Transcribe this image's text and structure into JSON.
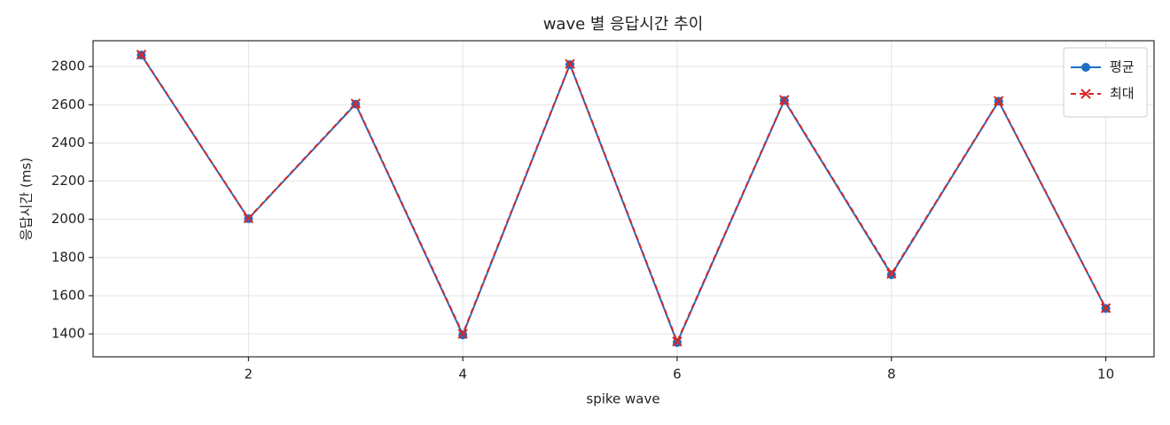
{
  "chart_data": {
    "type": "line",
    "title": "wave 별 응답시간 추이",
    "xlabel": "spike wave",
    "ylabel": "응답시간 (ms)",
    "x": [
      1,
      2,
      3,
      4,
      5,
      6,
      7,
      8,
      9,
      10
    ],
    "series": [
      {
        "name": "평균",
        "color": "#1f6fc5",
        "marker": "circle",
        "linestyle": "solid",
        "values": [
          2860,
          2003,
          2603,
          1395,
          2810,
          1355,
          2622,
          1710,
          2618,
          1533
        ]
      },
      {
        "name": "최대",
        "color": "#d62728",
        "marker": "x",
        "linestyle": "dashed",
        "values": [
          2862,
          2005,
          2606,
          1400,
          2813,
          1360,
          2625,
          1715,
          2620,
          1535
        ]
      }
    ],
    "xlim": [
      0.55,
      10.45
    ],
    "xticks": [
      2,
      4,
      6,
      8,
      10
    ],
    "ylim": [
      1280,
      2935
    ],
    "yticks": [
      1400,
      1600,
      1800,
      2000,
      2200,
      2400,
      2600,
      2800
    ],
    "grid": true,
    "legend": "upper right"
  }
}
